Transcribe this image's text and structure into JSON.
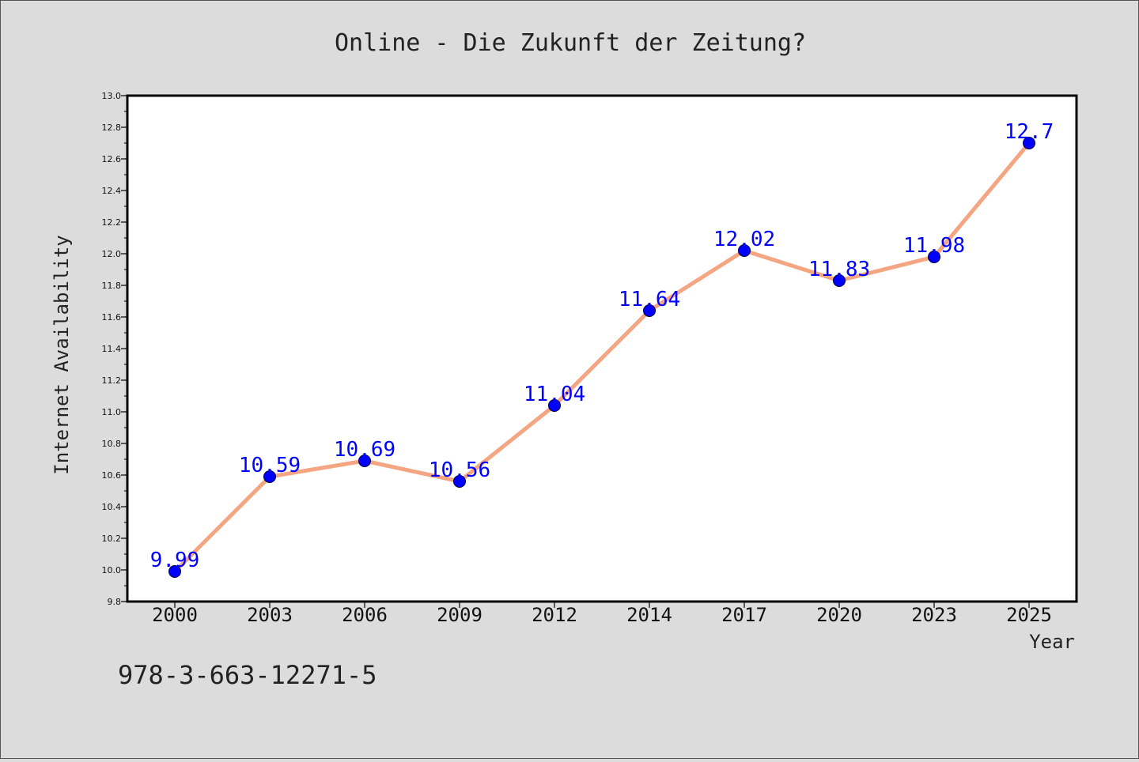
{
  "chart_data": {
    "type": "line",
    "title": "Online - Die Zukunft der Zeitung?",
    "xlabel": "Year",
    "ylabel": "Internet Availability",
    "categories": [
      "2000",
      "2003",
      "2006",
      "2009",
      "2012",
      "2014",
      "2017",
      "2020",
      "2023",
      "2025"
    ],
    "values": [
      9.99,
      10.59,
      10.69,
      10.56,
      11.04,
      11.64,
      12.02,
      11.83,
      11.98,
      12.7
    ],
    "data_labels": [
      "9.99",
      "10.59",
      "10.69",
      "10.56",
      "11.04",
      "11.64",
      "12.02",
      "11.83",
      "11.98",
      "12.7"
    ],
    "ylim": [
      9.8,
      13.0
    ],
    "yticks": [
      "9.8",
      "10.0",
      "10.2",
      "10.4",
      "10.6",
      "10.8",
      "11.0",
      "11.2",
      "11.4",
      "11.6",
      "11.8",
      "12.0",
      "12.2",
      "12.4",
      "12.6",
      "12.8",
      "13.0"
    ],
    "grid": false,
    "line_color": "#f4a582",
    "marker_color": "#0000ff",
    "label_color": "#0000ff",
    "background_color": "#dcdcdc",
    "plot_background_color": "#ffffff"
  },
  "footer": {
    "isbn": "978-3-663-12271-5"
  }
}
